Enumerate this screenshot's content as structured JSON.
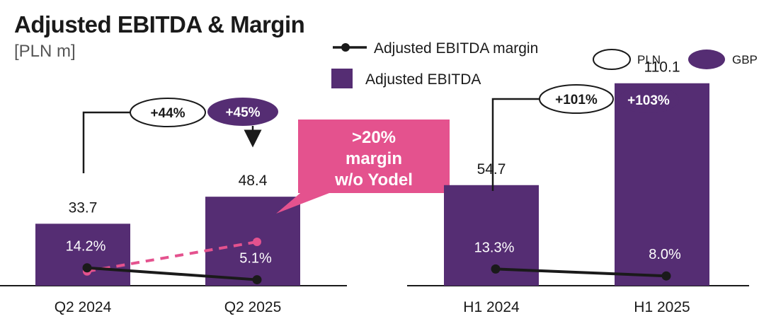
{
  "title": "Adjusted EBITDA & Margin",
  "unit": "[PLN m]",
  "legend": {
    "margin_label": "Adjusted EBITDA margin",
    "ebitda_label": "Adjusted EBITDA",
    "pln_label": "PLN",
    "gbp_label": "GBP"
  },
  "colors": {
    "bar": "#552D73",
    "line": "#1a1a1a",
    "dashed": "#E4528E",
    "callout": "#E4528E"
  },
  "chart_data": [
    {
      "type": "bar",
      "title": "Adjusted EBITDA & Margin",
      "ylabel": "PLN m",
      "categories": [
        "Q2 2024",
        "Q2 2025"
      ],
      "series": [
        {
          "name": "Adjusted EBITDA",
          "values": [
            33.7,
            48.4
          ],
          "labels": [
            "33.7",
            "48.4"
          ]
        },
        {
          "name": "Adjusted EBITDA margin",
          "values": [
            14.2,
            5.1
          ],
          "labels": [
            "14.2%",
            "5.1%"
          ]
        },
        {
          "name": "Adjusted EBITDA margin w/o Yodel",
          "style": "dashed",
          "values": [
            14.2,
            20
          ]
        }
      ],
      "growth": {
        "pln": "+44%",
        "gbp": "+45%"
      },
      "callout": [
        ">20%",
        "margin",
        "w/o Yodel"
      ]
    },
    {
      "type": "bar",
      "categories": [
        "H1 2024",
        "H1 2025"
      ],
      "series": [
        {
          "name": "Adjusted EBITDA",
          "values": [
            54.7,
            110.1
          ],
          "labels": [
            "54.7",
            "110.1"
          ]
        },
        {
          "name": "Adjusted EBITDA margin",
          "values": [
            13.3,
            8.0
          ],
          "labels": [
            "13.3%",
            "8.0%"
          ]
        }
      ],
      "growth": {
        "pln": "+101%",
        "gbp": "+103%"
      }
    }
  ]
}
